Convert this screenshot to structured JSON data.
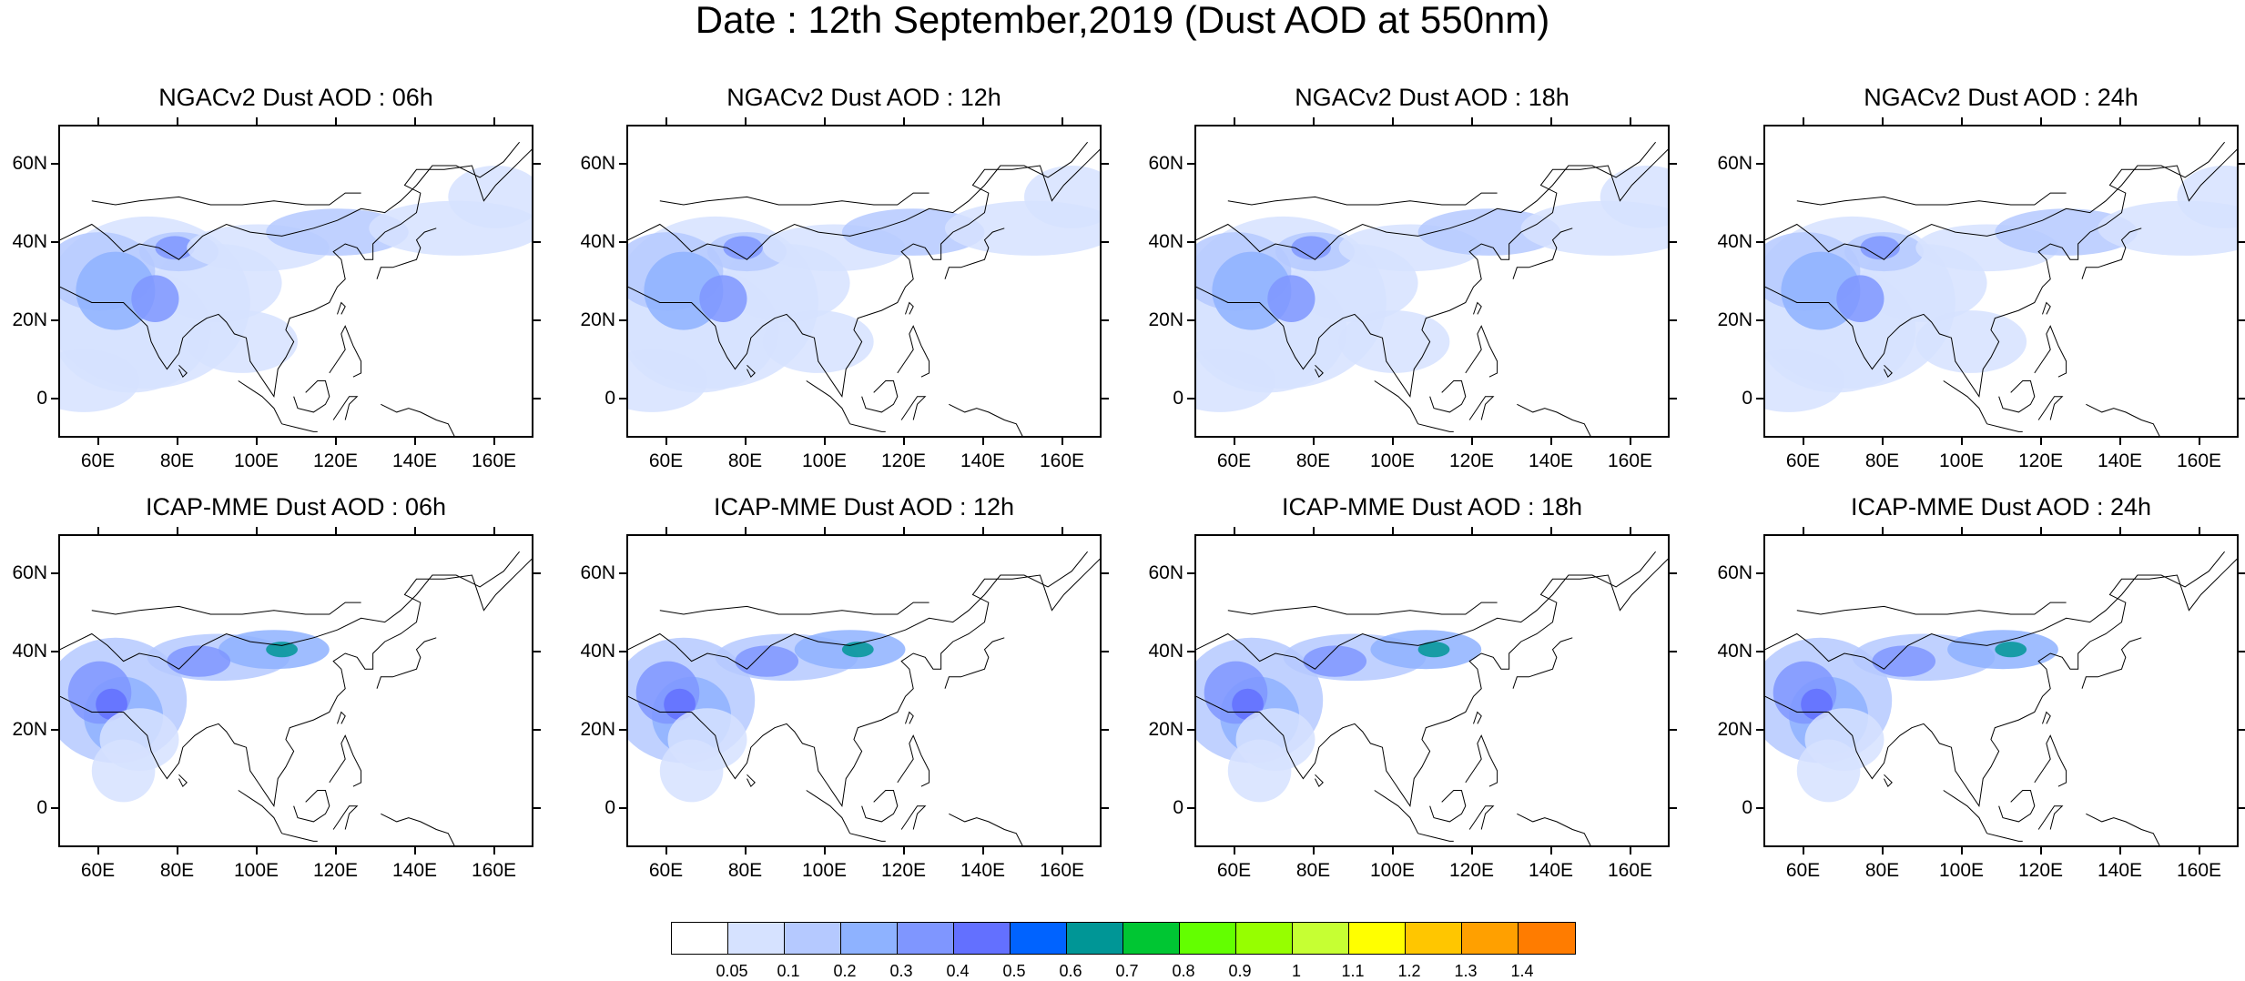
{
  "title": "Date : 12th September,2019 (Dust AOD at 550nm)",
  "panels": [
    {
      "title": "NGACv2 Dust AOD : 06h",
      "model": "NGACv2",
      "lead": "06h"
    },
    {
      "title": "NGACv2 Dust AOD : 12h",
      "model": "NGACv2",
      "lead": "12h"
    },
    {
      "title": "NGACv2 Dust AOD : 18h",
      "model": "NGACv2",
      "lead": "18h"
    },
    {
      "title": "NGACv2 Dust AOD : 24h",
      "model": "NGACv2",
      "lead": "24h"
    },
    {
      "title": "ICAP-MME Dust AOD : 06h",
      "model": "ICAP-MME",
      "lead": "06h"
    },
    {
      "title": "ICAP-MME Dust AOD : 12h",
      "model": "ICAP-MME",
      "lead": "12h"
    },
    {
      "title": "ICAP-MME Dust AOD : 18h",
      "model": "ICAP-MME",
      "lead": "18h"
    },
    {
      "title": "ICAP-MME Dust AOD : 24h",
      "model": "ICAP-MME",
      "lead": "24h"
    }
  ],
  "axes": {
    "lat_ticks": [
      "60N",
      "40N",
      "20N",
      "0"
    ],
    "lat_values": [
      60,
      40,
      20,
      0
    ],
    "lon_ticks": [
      "60E",
      "80E",
      "100E",
      "120E",
      "140E",
      "160E"
    ],
    "lon_values": [
      60,
      80,
      100,
      120,
      140,
      160
    ],
    "lon_range": [
      50,
      170
    ],
    "lat_range": [
      -10,
      70
    ]
  },
  "colorbar": {
    "colors": [
      "#ffffff",
      "#d6e2ff",
      "#b5c9ff",
      "#8eb2ff",
      "#7f96ff",
      "#6370ff",
      "#0063ff",
      "#009696",
      "#00c633",
      "#63ff00",
      "#96ff00",
      "#c6ff33",
      "#ffff00",
      "#ffc600",
      "#ffa000",
      "#ff7c00",
      "#ff1900"
    ],
    "labels": [
      "0.05",
      "0.1",
      "0.2",
      "0.3",
      "0.4",
      "0.5",
      "0.6",
      "0.7",
      "0.8",
      "0.9",
      "1",
      "1.1",
      "1.2",
      "1.3",
      "1.4"
    ]
  }
}
